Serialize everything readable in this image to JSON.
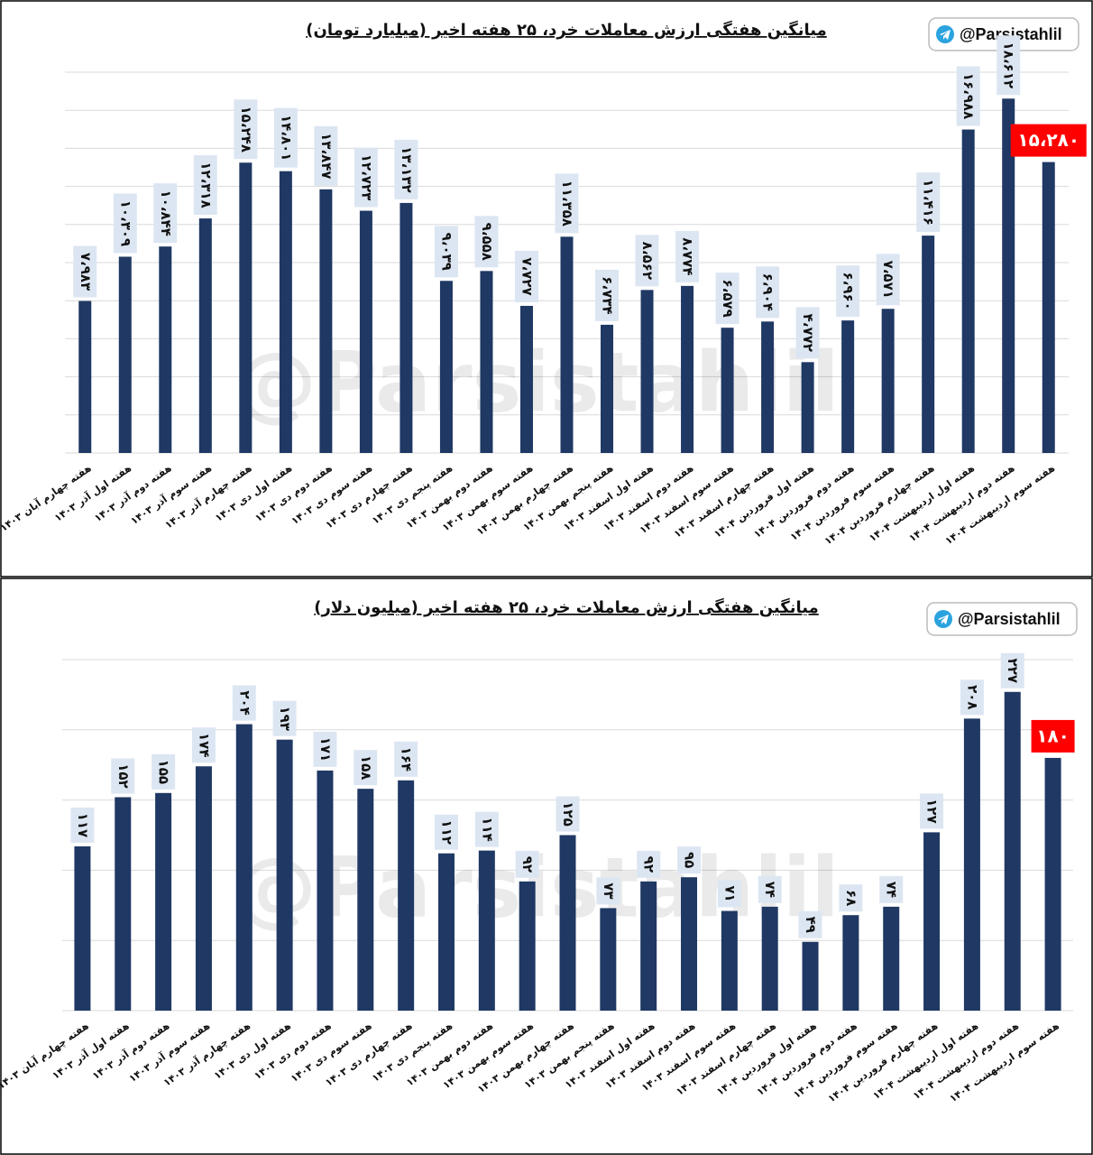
{
  "chart_data": [
    {
      "type": "bar",
      "title": "میانگین هفتگی ارزش معاملات خرد، ۲۵ هفته اخیر (میلیارد تومان)",
      "badge": "@Parsistahlil",
      "watermark": "@Parsistahlil",
      "categories": [
        "هفته چهارم آبان ۱۴۰۳",
        "هفته اول آذر ۱۴۰۳",
        "هفته دوم آذر ۱۴۰۳",
        "هفته سوم آذر ۱۴۰۳",
        "هفته چهارم آذر ۱۴۰۳",
        "هفته اول دی ۱۴۰۳",
        "هفته دوم دی ۱۴۰۳",
        "هفته سوم دی ۱۴۰۳",
        "هفته چهارم دی ۱۴۰۳",
        "هفته پنجم دی ۱۴۰۳",
        "هفته دوم بهمن ۱۴۰۳",
        "هفته سوم بهمن ۱۴۰۳",
        "هفته چهارم بهمن ۱۴۰۳",
        "هفته پنجم بهمن ۱۴۰۳",
        "هفته اول اسفند ۱۴۰۳",
        "هفته دوم اسفند ۱۴۰۳",
        "هفته سوم اسفند ۱۴۰۳",
        "هفته چهارم اسفند ۱۴۰۳",
        "هفته اول فروردین ۱۴۰۴",
        "هفته دوم فروردین ۱۴۰۴",
        "هفته سوم فروردین ۱۴۰۴",
        "هفته چهارم فروردین ۱۴۰۴",
        "هفته اول اردیبهشت ۱۴۰۴",
        "هفته دوم اردیبهشت ۱۴۰۴",
        "هفته سوم اردیبهشت ۱۴۰۴"
      ],
      "values": [
        7.983,
        10.309,
        10.844,
        12.318,
        15.248,
        14.801,
        13.847,
        12.723,
        13.132,
        9.039,
        9.558,
        7.727,
        11.358,
        6.734,
        8.562,
        8.774,
        6.579,
        6.904,
        4.772,
        6.96,
        7.571,
        11.416,
        16.988,
        18.612,
        15.28
      ],
      "value_labels": [
        "۷،۹۸۳",
        "۱۰،۳۰۹",
        "۱۰،۸۴۴",
        "۱۲،۳۱۸",
        "۱۵،۲۴۸",
        "۱۴،۸۰۱",
        "۱۳،۸۴۷",
        "۱۲،۷۲۳",
        "۱۳،۱۳۲",
        "۹،۰۳۹",
        "۹،۵۵۸",
        "۷،۷۲۷",
        "۱۱،۳۵۸",
        "۶،۷۳۴",
        "۸،۵۶۲",
        "۸،۷۷۴",
        "۶،۵۷۹",
        "۶،۹۰۴",
        "۴،۷۷۲",
        "۶،۹۶۰",
        "۷،۵۷۱",
        "۱۱،۴۱۶",
        "۱۶،۹۸۸",
        "۱۸،۶۱۲",
        "۱۵،۲۸۰"
      ],
      "color": "#1f3864",
      "label_box_color": "#dce6f2",
      "highlight_color": "#ff0000",
      "ylim": [
        0,
        20
      ],
      "yticks": [
        0,
        2,
        4,
        6,
        8,
        10,
        12,
        14,
        16,
        18,
        20
      ],
      "grid": true
    },
    {
      "type": "bar",
      "title": "میانگین هفتگی ارزش معاملات خرد، ۲۵ هفته اخیر (میلیون دلار)",
      "badge": "@Parsistahlil",
      "watermark": "@Parsistahlil",
      "categories": [
        "هفته چهارم آبان ۱۴۰۳",
        "هفته اول آذر ۱۴۰۳",
        "هفته دوم آذر ۱۴۰۳",
        "هفته سوم آذر ۱۴۰۳",
        "هفته چهارم آذر ۱۴۰۳",
        "هفته اول دی ۱۴۰۳",
        "هفته دوم دی ۱۴۰۳",
        "هفته سوم دی ۱۴۰۳",
        "هفته چهارم دی ۱۴۰۳",
        "هفته پنجم دی ۱۴۰۳",
        "هفته دوم بهمن ۱۴۰۳",
        "هفته سوم بهمن ۱۴۰۳",
        "هفته چهارم بهمن ۱۴۰۳",
        "هفته پنجم بهمن ۱۴۰۳",
        "هفته اول اسفند ۱۴۰۳",
        "هفته دوم اسفند ۱۴۰۳",
        "هفته سوم اسفند ۱۴۰۳",
        "هفته چهارم اسفند ۱۴۰۳",
        "هفته اول فروردین ۱۴۰۴",
        "هفته دوم فروردین ۱۴۰۴",
        "هفته سوم فروردین ۱۴۰۴",
        "هفته چهارم فروردین ۱۴۰۴",
        "هفته اول اردیبهشت ۱۴۰۴",
        "هفته دوم اردیبهشت ۱۴۰۴",
        "هفته سوم اردیبهشت ۱۴۰۴"
      ],
      "values": [
        117,
        152,
        155,
        174,
        204,
        193,
        171,
        158,
        164,
        112,
        114,
        92,
        125,
        73,
        92,
        95,
        71,
        74,
        49,
        68,
        74,
        127,
        208,
        227,
        180
      ],
      "value_labels": [
        "۱۱۷",
        "۱۵۲",
        "۱۵۵",
        "۱۷۴",
        "۲۰۴",
        "۱۹۳",
        "۱۷۱",
        "۱۵۸",
        "۱۶۴",
        "۱۱۲",
        "۱۱۴",
        "۹۲",
        "۱۲۵",
        "۷۳",
        "۹۲",
        "۹۵",
        "۷۱",
        "۷۴",
        "۴۹",
        "۶۸",
        "۷۴",
        "۱۲۷",
        "۲۰۸",
        "۲۲۷",
        "۱۸۰"
      ],
      "color": "#1f3864",
      "label_box_color": "#dce6f2",
      "highlight_color": "#ff0000",
      "ylim": [
        0,
        250
      ],
      "yticks": [
        0,
        50,
        100,
        150,
        200,
        250
      ],
      "grid": true
    }
  ]
}
